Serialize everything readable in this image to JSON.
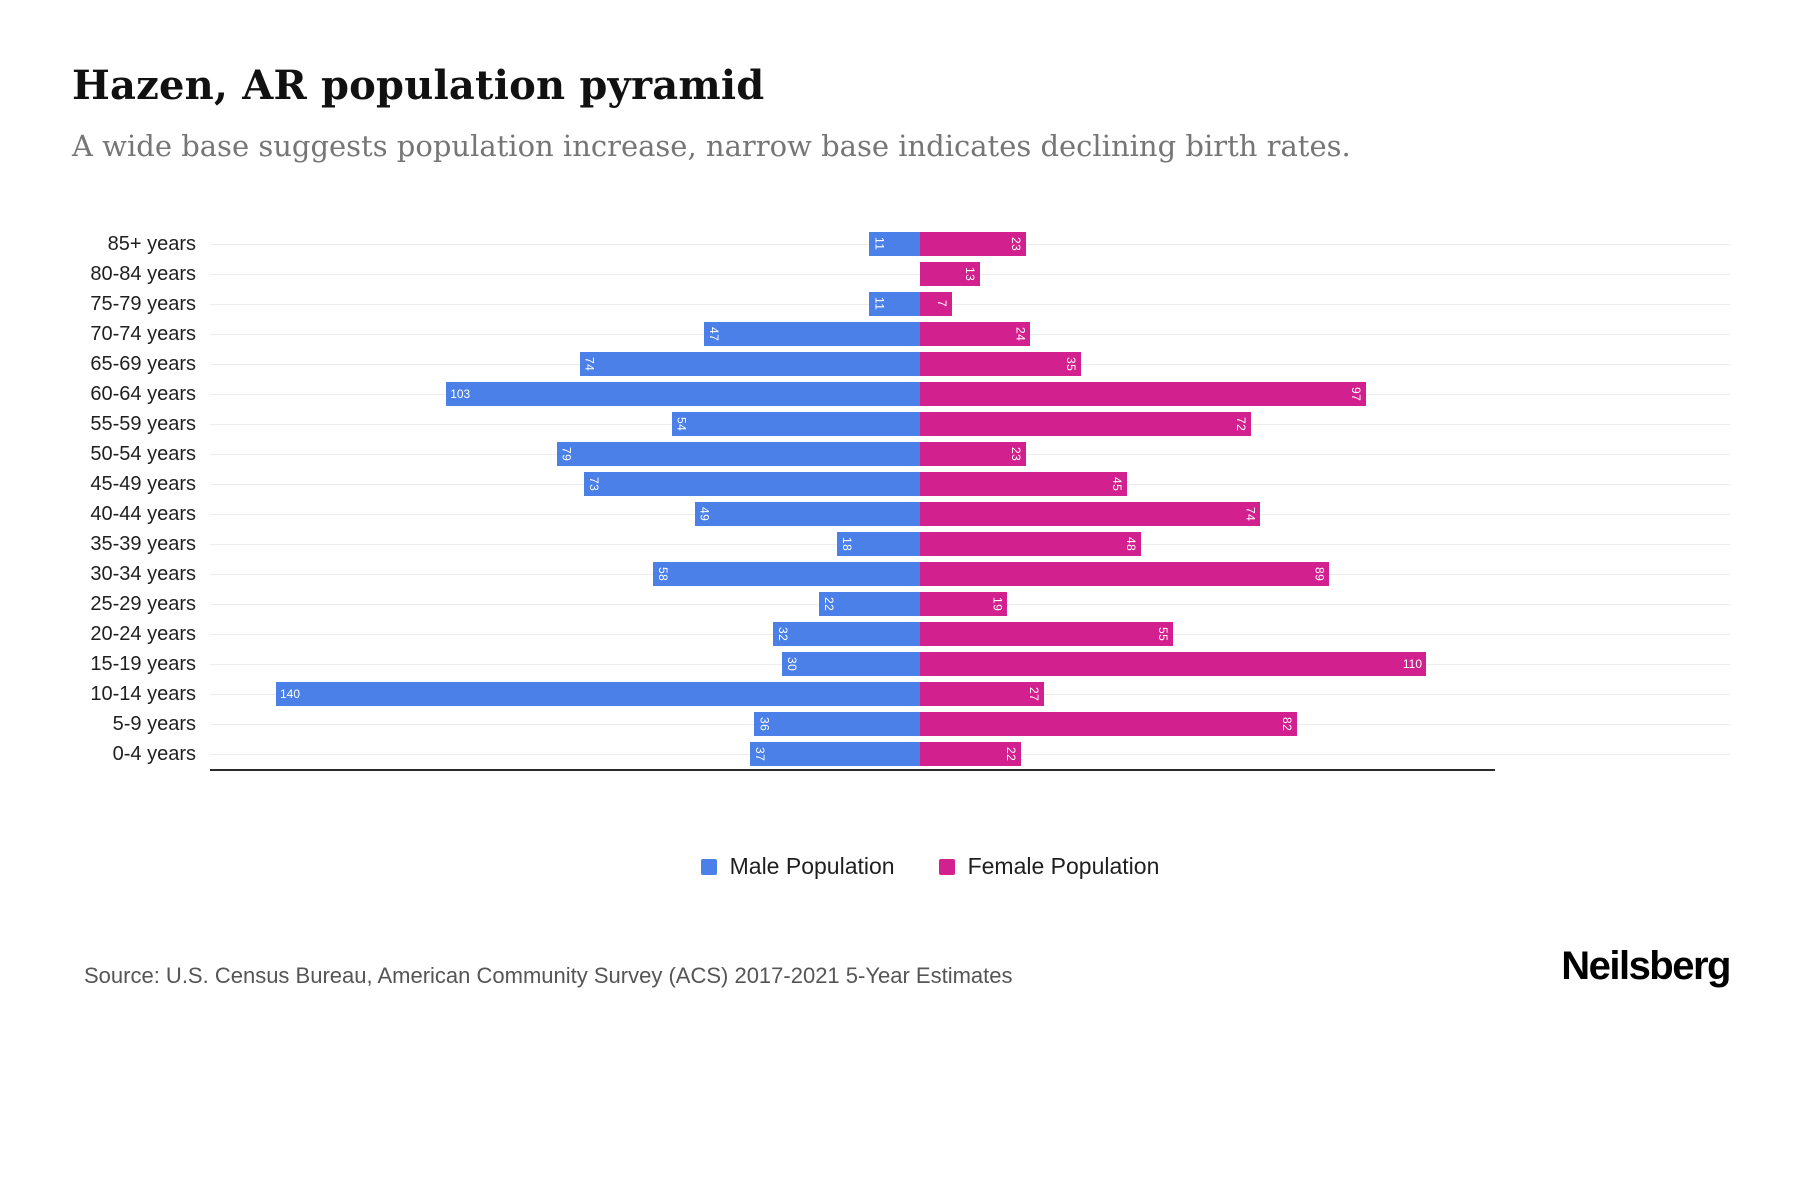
{
  "header": {
    "title": "Hazen, AR population pyramid",
    "subtitle": "A wide base suggests population increase, narrow base indicates declining birth rates."
  },
  "chart_data": {
    "type": "bar",
    "variant": "population-pyramid",
    "orientation": "horizontal",
    "categories": [
      "85+ years",
      "80-84 years",
      "75-79 years",
      "70-74 years",
      "65-69 years",
      "60-64 years",
      "55-59 years",
      "50-54 years",
      "45-49 years",
      "40-44 years",
      "35-39 years",
      "30-34 years",
      "25-29 years",
      "20-24 years",
      "15-19 years",
      "10-14 years",
      "5-9 years",
      "0-4 years"
    ],
    "series": [
      {
        "name": "Male Population",
        "color": "#4a80e8",
        "values": [
          11,
          0,
          11,
          47,
          74,
          103,
          54,
          79,
          73,
          49,
          18,
          58,
          22,
          32,
          30,
          140,
          36,
          37
        ]
      },
      {
        "name": "Female Population",
        "color": "#d2218f",
        "values": [
          23,
          13,
          7,
          24,
          35,
          97,
          72,
          23,
          45,
          74,
          48,
          89,
          19,
          55,
          110,
          27,
          82,
          22
        ]
      }
    ],
    "axis_max_male": 140,
    "axis_max_female": 110,
    "grid": true,
    "legend_position": "bottom",
    "value_labels": "inside-end"
  },
  "legend": {
    "male_label": "Male Population",
    "female_label": "Female Population"
  },
  "footer": {
    "source": "Source: U.S. Census Bureau, American Community Survey (ACS) 2017-2021 5-Year Estimates",
    "logo": "Neilsberg"
  }
}
